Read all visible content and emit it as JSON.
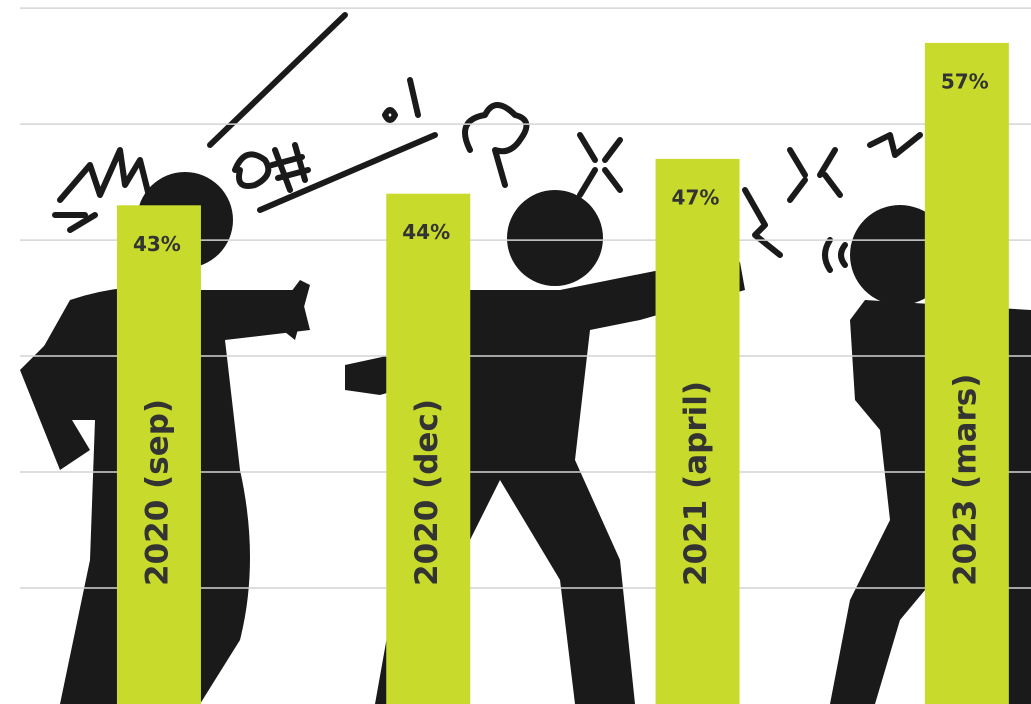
{
  "chart_data": {
    "type": "bar",
    "categories": [
      "2020 (sep)",
      "2020 (dec)",
      "2021 (april)",
      "2023 (mars)"
    ],
    "values": [
      43,
      44,
      47,
      57
    ],
    "value_labels": [
      "43%",
      "44%",
      "47%",
      "57%"
    ],
    "color": "#c8db2c",
    "ylim": [
      0,
      60.7
    ],
    "yticks": [
      10,
      20,
      30,
      40,
      50,
      60
    ],
    "grid": true
  }
}
